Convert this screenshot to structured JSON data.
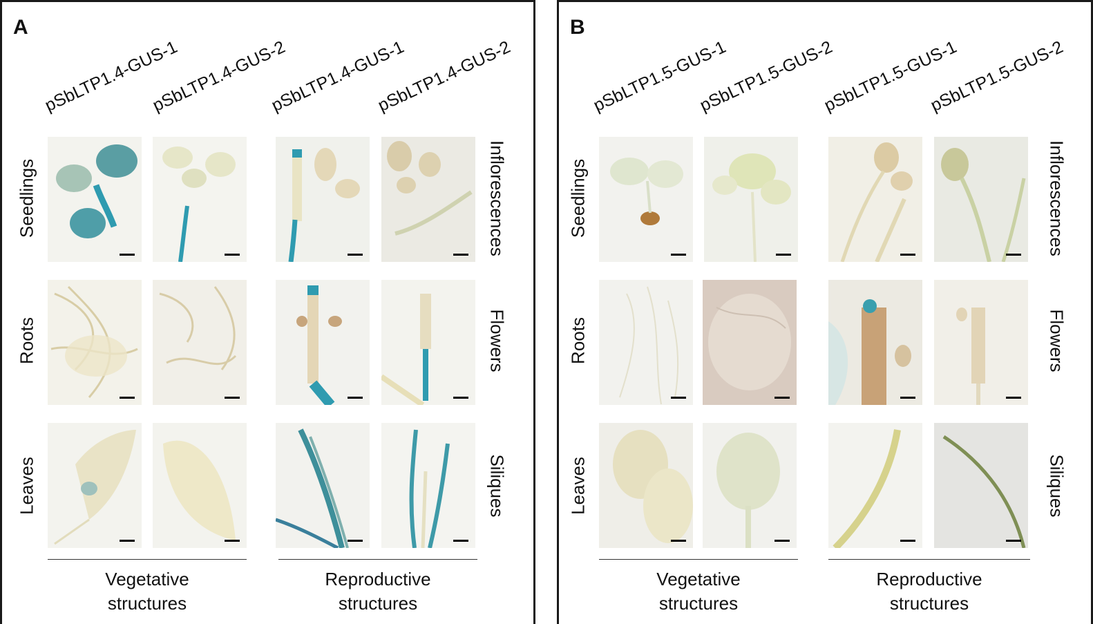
{
  "panels": [
    {
      "letter": "A",
      "columns": [
        "pSbLTP1.4-GUS-1",
        "pSbLTP1.4-GUS-2",
        "pSbLTP1.4-GUS-1",
        "pSbLTP1.4-GUS-2"
      ],
      "left_rows": [
        "Seedlings",
        "Roots",
        "Leaves"
      ],
      "right_rows": [
        "Inflorescences",
        "Flowers",
        "Siliques"
      ],
      "groups": [
        {
          "line1": "Vegetative",
          "line2": "structures"
        },
        {
          "line1": "Reproductive",
          "line2": "structures"
        }
      ]
    },
    {
      "letter": "B",
      "columns": [
        "pSbLTP1.5-GUS-1",
        "pSbLTP1.5-GUS-2",
        "pSbLTP1.5-GUS-1",
        "pSbLTP1.5-GUS-2"
      ],
      "left_rows": [
        "Seedlings",
        "Roots",
        "Leaves"
      ],
      "right_rows": [
        "Inflorescences",
        "Flowers",
        "Siliques"
      ],
      "groups": [
        {
          "line1": "Vegetative",
          "line2": "structures"
        },
        {
          "line1": "Reproductive",
          "line2": "structures"
        }
      ]
    }
  ],
  "colors": {
    "gus_blue": "#2f9bb0",
    "tissue_pale": "#e8e3c6",
    "background_light": "#f4f3ee",
    "border": "#1a1a1a"
  }
}
